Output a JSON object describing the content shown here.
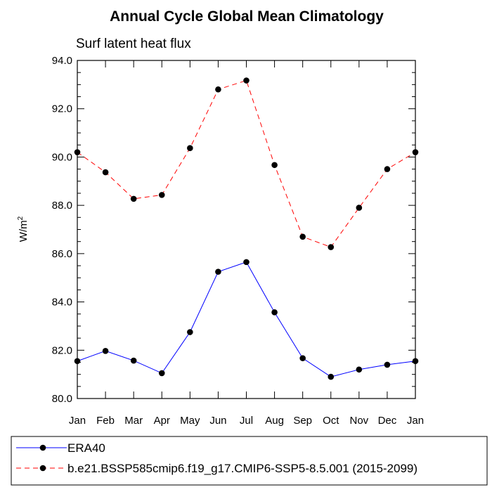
{
  "chart_data": {
    "type": "line",
    "title": "Annual Cycle Global Mean Climatology",
    "subtitle": "Surf latent heat flux",
    "ylabel": "W/m",
    "ylabel_sup": "2",
    "xlabel": "",
    "categories": [
      "Jan",
      "Feb",
      "Mar",
      "Apr",
      "May",
      "Jun",
      "Jul",
      "Aug",
      "Sep",
      "Oct",
      "Nov",
      "Dec",
      "Jan"
    ],
    "ylim": [
      80.0,
      94.0
    ],
    "yticks": [
      "80.0",
      "82.0",
      "84.0",
      "86.0",
      "88.0",
      "90.0",
      "92.0",
      "94.0"
    ],
    "grid": false,
    "legend_position": "bottom",
    "series": [
      {
        "name": "ERA40",
        "color": "#0000ff",
        "line_style": "solid",
        "marker": "filled-circle",
        "values": [
          81.55,
          81.97,
          81.57,
          81.05,
          82.75,
          85.25,
          85.65,
          83.57,
          81.67,
          80.9,
          81.2,
          81.4,
          81.55
        ]
      },
      {
        "name": "b.e21.BSSP585cmip6.f19_g17.CMIP6-SSP5-8.5.001 (2015-2099)",
        "color": "#ff0000",
        "line_style": "dashed",
        "marker": "filled-circle",
        "values": [
          90.2,
          89.37,
          88.27,
          88.43,
          90.37,
          92.8,
          93.17,
          89.67,
          86.7,
          86.27,
          87.9,
          89.5,
          90.2
        ]
      }
    ]
  }
}
